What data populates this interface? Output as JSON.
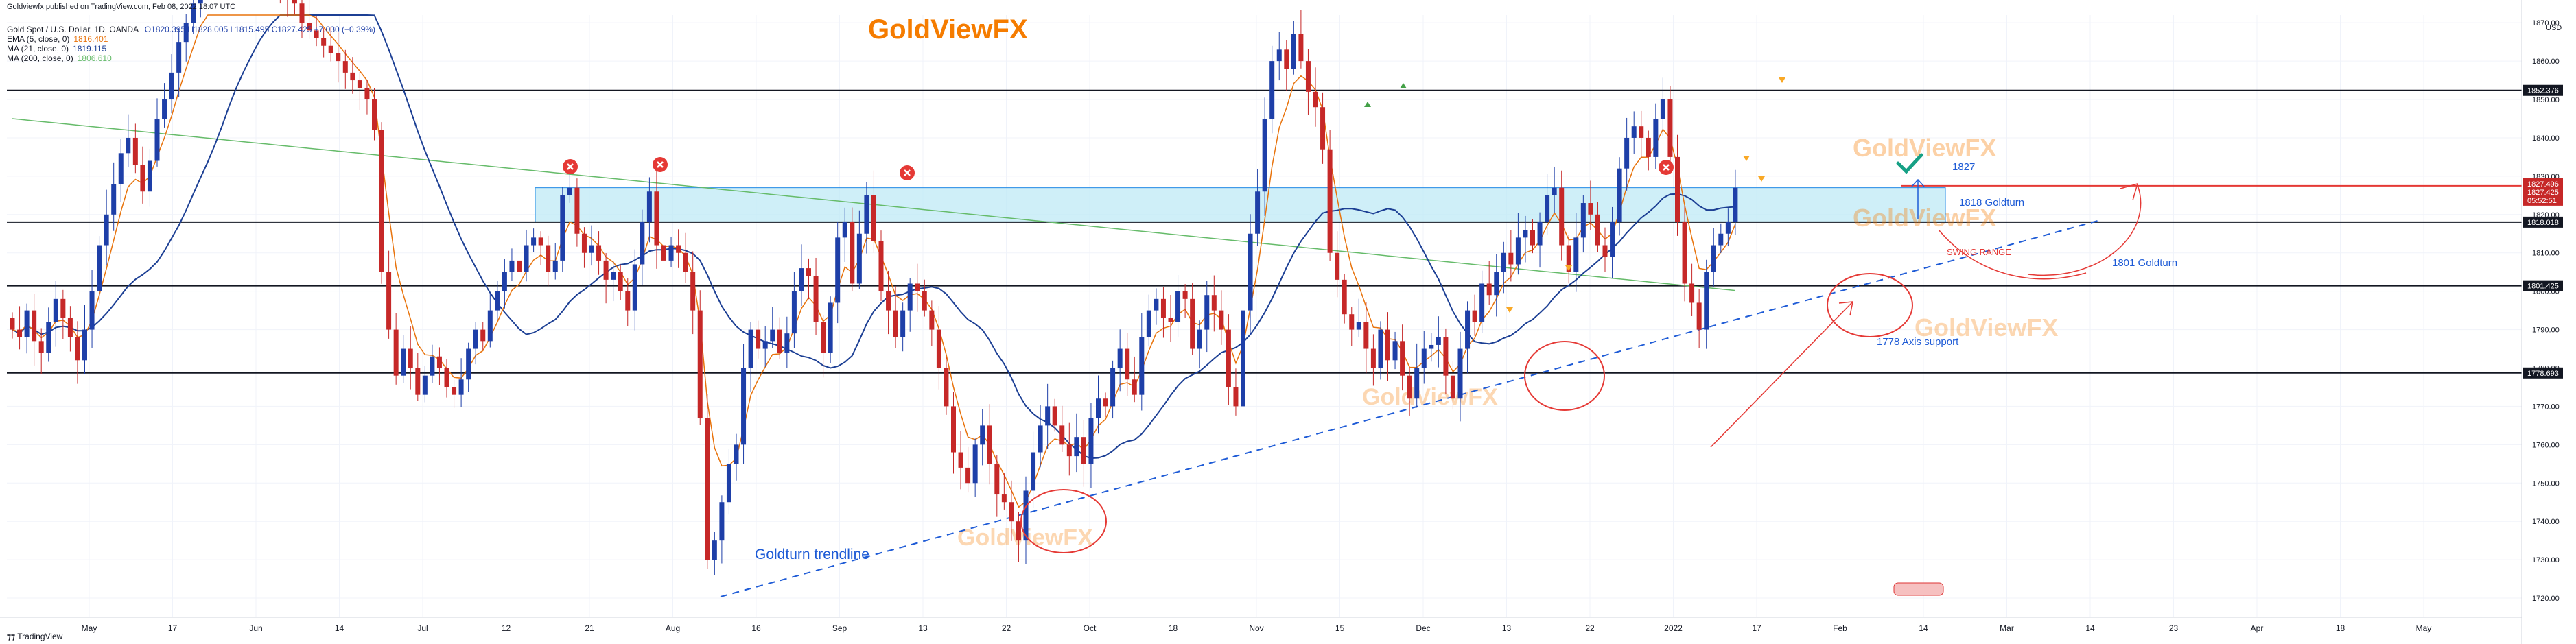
{
  "header": {
    "published": "Goldviewfx published on TradingView.com, Feb 08, 2022 18:07 UTC",
    "symbol_line": "Gold Spot / U.S. Dollar, 1D, OANDA",
    "ohlc": "O1820.395 H1828.005 L1815.495 C1827.425 +7.030 (+0.39%)"
  },
  "indicators": [
    {
      "label": "EMA (5, close, 0)",
      "value": "1816.401",
      "color": "#e8730c"
    },
    {
      "label": "MA (21, close, 0)",
      "value": "1819.115",
      "color": "#1c3f94"
    },
    {
      "label": "MA (200, close, 0)",
      "value": "1806.610",
      "color": "#66bb6a"
    }
  ],
  "footer": {
    "brand": "TradingView"
  },
  "watermarks": [
    "GoldViewFX",
    "GoldViewFX",
    "GoldViewFX",
    "GoldViewFX",
    "GoldViewFX",
    "GoldViewFX"
  ],
  "colors": {
    "up": "#1e3fa8",
    "down": "#c62828",
    "zone": "#bfeaf5",
    "zone_border": "#1e88e5",
    "annotation_red": "#e53935",
    "annotation_blue": "#1e5bd6",
    "watermark": "#f57c00"
  },
  "chart_data": {
    "type": "candlestick",
    "title": "",
    "xlabel": "",
    "ylabel": "",
    "y_axis_unit": "USD",
    "ylim": [
      1715,
      1872
    ],
    "y_ticks": [
      1720,
      1730,
      1740,
      1750,
      1760,
      1770,
      1780,
      1790,
      1800,
      1810,
      1820,
      1830,
      1840,
      1850,
      1860,
      1870
    ],
    "x_tick_labels": [
      "May",
      "17",
      "Jun",
      "14",
      "Jul",
      "12",
      "21",
      "Aug",
      "16",
      "Sep",
      "13",
      "22",
      "Oct",
      "18",
      "Nov",
      "15",
      "Dec",
      "13",
      "22",
      "2022",
      "17",
      "Feb",
      "14",
      "Mar",
      "14",
      "23",
      "Apr",
      "18",
      "May"
    ],
    "horizontal_levels": [
      {
        "value": 1852.376,
        "label": "1852.376"
      },
      {
        "value": 1818.018,
        "label": "1818.018"
      },
      {
        "value": 1801.425,
        "label": "1801.425"
      },
      {
        "value": 1778.693,
        "label": "1778.693"
      }
    ],
    "current_price": {
      "value": 1827.496,
      "label": "1827.496",
      "price": "1827.425",
      "countdown": "05:52:51"
    },
    "zone": {
      "low": 1818,
      "high": 1827
    },
    "annotations": [
      {
        "text": "1827",
        "color": "#1e5bd6"
      },
      {
        "text": "1818 Goldturn",
        "color": "#1e5bd6"
      },
      {
        "text": "SWING RANGE",
        "color": "#e53935"
      },
      {
        "text": "1801 Goldturn",
        "color": "#1e5bd6"
      },
      {
        "text": "1778 Axis support",
        "color": "#1e5bd6"
      },
      {
        "text": "Goldturn trendline",
        "color": "#1e5bd6"
      }
    ],
    "series": [
      {
        "name": "EMA (5, close, 0)",
        "color": "#e8730c"
      },
      {
        "name": "MA (21, close, 0)",
        "color": "#1c3f94"
      },
      {
        "name": "MA (200, close, 0)",
        "color": "#66bb6a"
      }
    ],
    "closes": [
      1790,
      1788,
      1795,
      1787,
      1784,
      1792,
      1798,
      1793,
      1788,
      1782,
      1790,
      1800,
      1812,
      1820,
      1828,
      1836,
      1840,
      1833,
      1826,
      1834,
      1845,
      1850,
      1857,
      1865,
      1870,
      1875,
      1880,
      1885,
      1888,
      1893,
      1893,
      1890,
      1887,
      1892,
      1895,
      1890,
      1885,
      1880,
      1877,
      1875,
      1870,
      1868,
      1866,
      1864,
      1862,
      1860,
      1857,
      1855,
      1853,
      1850,
      1842,
      1805,
      1790,
      1778,
      1785,
      1780,
      1773,
      1778,
      1783,
      1780,
      1775,
      1773,
      1777,
      1785,
      1790,
      1787,
      1795,
      1800,
      1805,
      1808,
      1805,
      1812,
      1814,
      1812,
      1805,
      1808,
      1825,
      1827,
      1815,
      1810,
      1812,
      1808,
      1803,
      1805,
      1800,
      1795,
      1807,
      1818,
      1826,
      1812,
      1808,
      1812,
      1810,
      1805,
      1795,
      1767,
      1730,
      1735,
      1745,
      1755,
      1760,
      1780,
      1790,
      1785,
      1787,
      1790,
      1784,
      1789,
      1800,
      1806,
      1804,
      1792,
      1784,
      1797,
      1814,
      1818,
      1802,
      1815,
      1825,
      1813,
      1800,
      1795,
      1788,
      1795,
      1802,
      1800,
      1795,
      1790,
      1780,
      1770,
      1758,
      1754,
      1750,
      1760,
      1765,
      1755,
      1747,
      1745,
      1740,
      1735,
      1748,
      1758,
      1765,
      1770,
      1765,
      1760,
      1757,
      1762,
      1755,
      1767,
      1772,
      1770,
      1780,
      1785,
      1777,
      1773,
      1788,
      1795,
      1798,
      1793,
      1792,
      1800,
      1798,
      1785,
      1790,
      1799,
      1795,
      1790,
      1775,
      1770,
      1795,
      1815,
      1826,
      1845,
      1860,
      1863,
      1858,
      1867,
      1860,
      1852,
      1848,
      1837,
      1810,
      1803,
      1794,
      1790,
      1792,
      1785,
      1780,
      1790,
      1782,
      1787,
      1778,
      1772,
      1780,
      1785,
      1786,
      1788,
      1778,
      1772,
      1785,
      1795,
      1792,
      1802,
      1799,
      1805,
      1810,
      1807,
      1814,
      1816,
      1812,
      1818,
      1825,
      1827,
      1812,
      1805,
      1814,
      1823,
      1820,
      1812,
      1809,
      1818,
      1832,
      1840,
      1843,
      1840,
      1835,
      1845,
      1850,
      1835,
      1818,
      1802,
      1797,
      1790,
      1805,
      1812,
      1815,
      1818,
      1827
    ]
  }
}
